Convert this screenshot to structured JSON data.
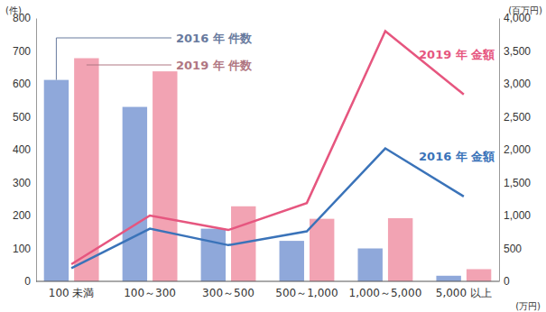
{
  "chart_data": {
    "type": "bar",
    "categories": [
      "100 未満",
      "100～300",
      "300～500",
      "500～1,000",
      "1,000～5,000",
      "5,000 以上"
    ],
    "x_label": "(万円)",
    "y_label": "(件)",
    "y2_label": "(百万円)",
    "ylim": [
      0,
      800
    ],
    "yticks": [
      0,
      100,
      200,
      300,
      400,
      500,
      600,
      700,
      800
    ],
    "y2lim": [
      0,
      4000
    ],
    "y2ticks": [
      0,
      500,
      {
        "value": 1000,
        "label": "1,000"
      },
      {
        "value": 1500,
        "label": "1,500"
      },
      {
        "value": 2000,
        "label": "2,000"
      },
      {
        "value": 2500,
        "label": "2,500"
      },
      {
        "value": 3000,
        "label": "3,000"
      },
      {
        "value": 3500,
        "label": "3,500"
      },
      {
        "value": 4000,
        "label": "4,000"
      }
    ],
    "grid": false,
    "series": [
      {
        "name": "2016 年 件数",
        "type": "bar",
        "color": "#8fa8da",
        "values": [
          612,
          530,
          160,
          123,
          100,
          17
        ]
      },
      {
        "name": "2019 年 件数",
        "type": "bar",
        "color": "#f2a3b3",
        "values": [
          678,
          638,
          228,
          190,
          192,
          37
        ]
      },
      {
        "name": "2016 年 金額",
        "type": "line",
        "axis": "y2",
        "color": "#3a73b9",
        "values": [
          200,
          800,
          550,
          760,
          2020,
          1290
        ]
      },
      {
        "name": "2019 年 金額",
        "type": "line",
        "axis": "y2",
        "color": "#e6567f",
        "values": [
          260,
          1000,
          780,
          1190,
          3800,
          2840
        ]
      }
    ]
  }
}
